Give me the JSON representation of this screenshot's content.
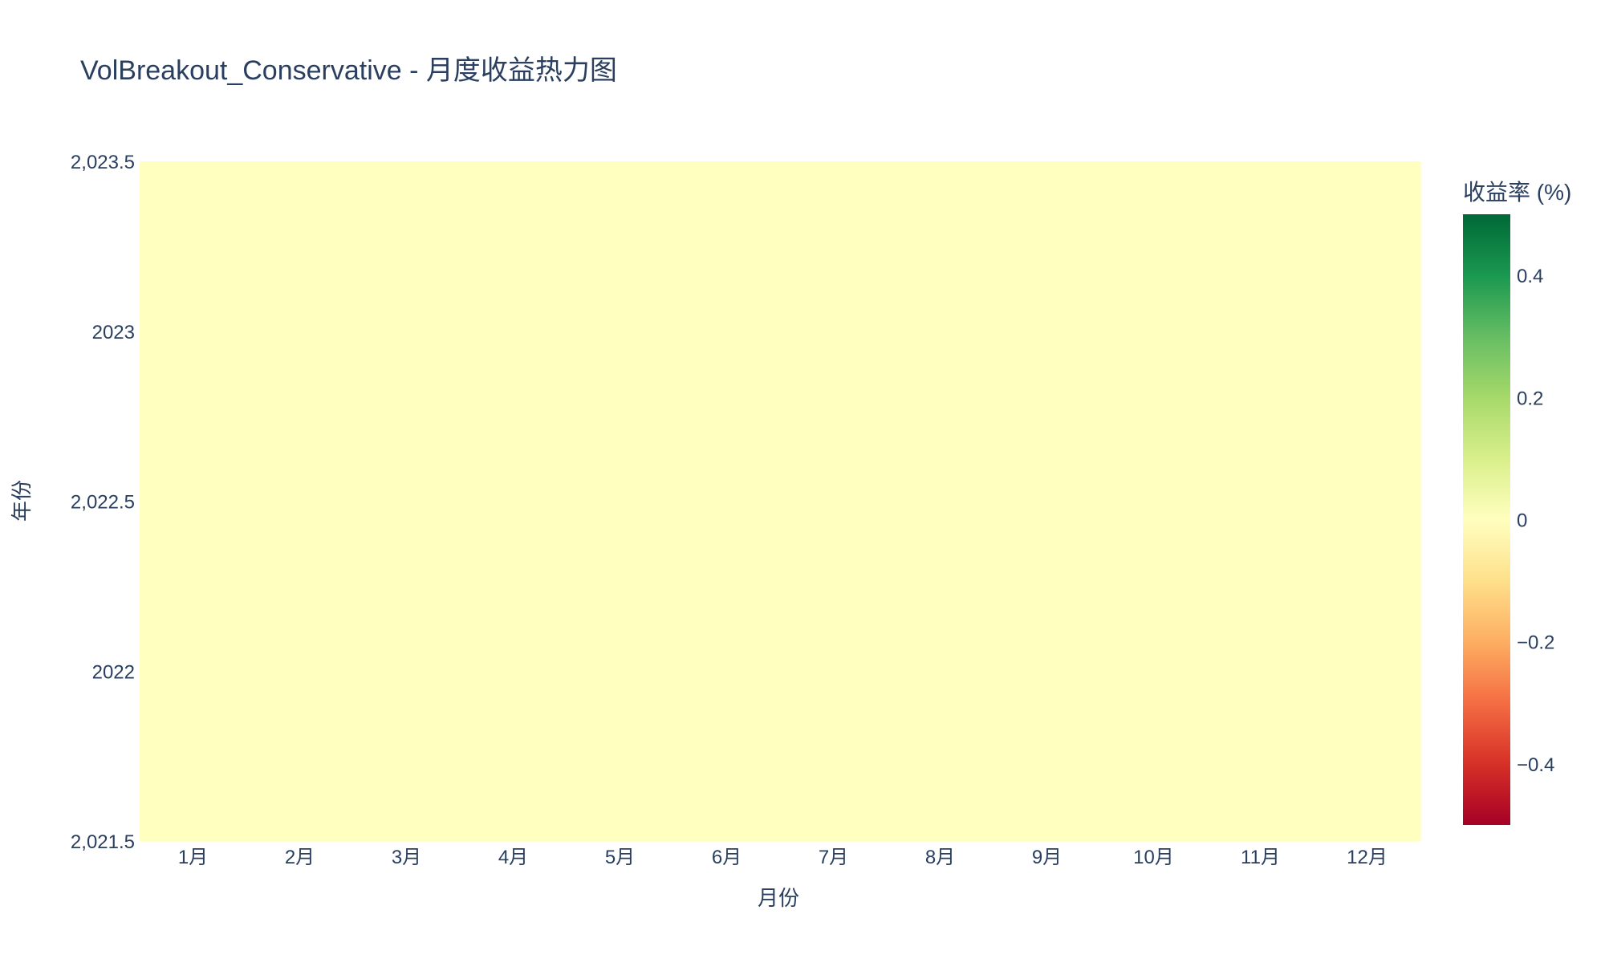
{
  "chart_data": {
    "type": "heatmap",
    "title": "VolBreakout_Conservative - 月度收益热力图",
    "xlabel": "月份",
    "ylabel": "年份",
    "x_categories": [
      "1月",
      "2月",
      "3月",
      "4月",
      "5月",
      "6月",
      "7月",
      "8月",
      "9月",
      "10月",
      "11月",
      "12月"
    ],
    "y": [
      2022,
      2023
    ],
    "ylim": [
      2021.5,
      2023.5
    ],
    "y_ticks": [
      "2,021.5",
      "2022",
      "2,022.5",
      "2023",
      "2,023.5"
    ],
    "z": [
      [
        0,
        0,
        0,
        0,
        0,
        0,
        0,
        0,
        0,
        0,
        0,
        0
      ],
      [
        0,
        0,
        0,
        0,
        0,
        0,
        0,
        0,
        0,
        0,
        0,
        0
      ]
    ],
    "colorbar": {
      "title": "收益率 (%)",
      "range": [
        -0.5,
        0.5
      ],
      "ticks": [
        {
          "value": 0.4,
          "label": "0.4"
        },
        {
          "value": 0.2,
          "label": "0.2"
        },
        {
          "value": 0,
          "label": "0"
        },
        {
          "value": -0.2,
          "label": "−0.2"
        },
        {
          "value": -0.4,
          "label": "−0.4"
        }
      ],
      "colorscale": [
        "#a50026",
        "#d73027",
        "#f46d43",
        "#fdae61",
        "#fee08b",
        "#ffffbf",
        "#d9ef8b",
        "#a6d96a",
        "#66bd63",
        "#1a9850",
        "#006837"
      ]
    },
    "grid": false,
    "legend": "none"
  }
}
